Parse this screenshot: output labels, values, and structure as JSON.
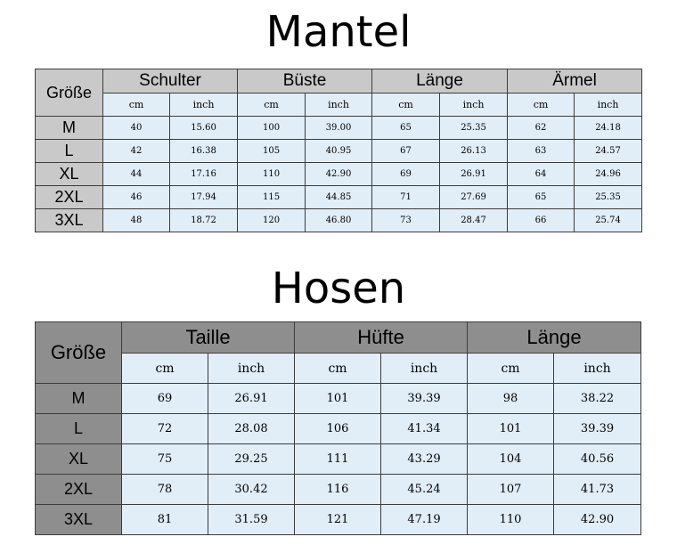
{
  "mantel": {
    "title": "Mantel",
    "size_header": "Größe",
    "groups": [
      "Schulter",
      "Büste",
      "Länge",
      "Ärmel"
    ],
    "units": [
      "cm",
      "inch"
    ],
    "rows": [
      {
        "size": "M",
        "values": [
          "40",
          "15.60",
          "100",
          "39.00",
          "65",
          "25.35",
          "62",
          "24.18"
        ]
      },
      {
        "size": "L",
        "values": [
          "42",
          "16.38",
          "105",
          "40.95",
          "67",
          "26.13",
          "63",
          "24.57"
        ]
      },
      {
        "size": "XL",
        "values": [
          "44",
          "17.16",
          "110",
          "42.90",
          "69",
          "26.91",
          "64",
          "24.96"
        ]
      },
      {
        "size": "2XL",
        "values": [
          "46",
          "17.94",
          "115",
          "44.85",
          "71",
          "27.69",
          "65",
          "25.35"
        ]
      },
      {
        "size": "3XL",
        "values": [
          "48",
          "18.72",
          "120",
          "46.80",
          "73",
          "28.47",
          "66",
          "25.74"
        ]
      }
    ]
  },
  "hosen": {
    "title": "Hosen",
    "size_header": "Größe",
    "groups": [
      "Taille",
      "Hüfte",
      "Länge"
    ],
    "units": [
      "cm",
      "inch"
    ],
    "rows": [
      {
        "size": "M",
        "values": [
          "69",
          "26.91",
          "101",
          "39.39",
          "98",
          "38.22"
        ]
      },
      {
        "size": "L",
        "values": [
          "72",
          "28.08",
          "106",
          "41.34",
          "101",
          "39.39"
        ]
      },
      {
        "size": "XL",
        "values": [
          "75",
          "29.25",
          "111",
          "43.29",
          "104",
          "40.56"
        ]
      },
      {
        "size": "2XL",
        "values": [
          "78",
          "30.42",
          "116",
          "45.24",
          "107",
          "41.73"
        ]
      },
      {
        "size": "3XL",
        "values": [
          "81",
          "31.59",
          "121",
          "47.19",
          "110",
          "42.90"
        ]
      }
    ]
  },
  "colors": {
    "mantel_header_bg": "#c9c9c9",
    "hosen_header_bg": "#8e8e8e",
    "cell_bg": "#e1edf7",
    "border": "#3c3c3c"
  }
}
